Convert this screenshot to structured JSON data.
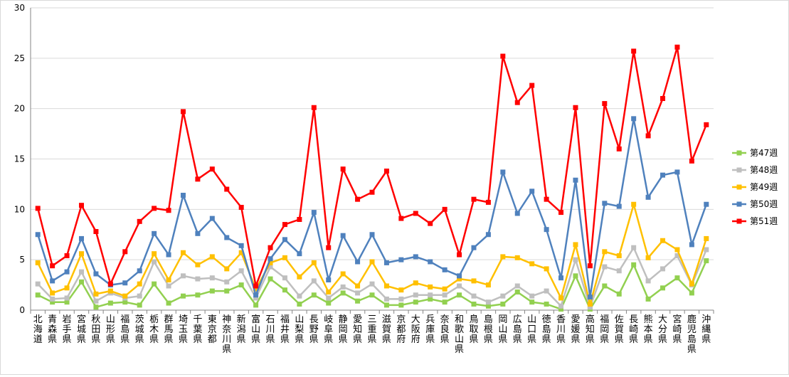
{
  "chart_data": {
    "type": "line",
    "categories": [
      "北海道",
      "青森県",
      "岩手県",
      "宮城県",
      "秋田県",
      "山形県",
      "福島県",
      "茨城県",
      "栃木県",
      "群馬県",
      "埼玉県",
      "千葉県",
      "東京都",
      "神奈川県",
      "新潟県",
      "富山県",
      "石川県",
      "福井県",
      "山梨県",
      "長野県",
      "岐阜県",
      "静岡県",
      "愛知県",
      "三重県",
      "滋賀県",
      "京都府",
      "大阪府",
      "兵庫県",
      "奈良県",
      "和歌山県",
      "鳥取県",
      "島根県",
      "岡山県",
      "広島県",
      "山口県",
      "徳島県",
      "香川県",
      "愛媛県",
      "高知県",
      "福岡県",
      "佐賀県",
      "長崎県",
      "熊本県",
      "大分県",
      "宮崎県",
      "鹿児島県",
      "沖縄県"
    ],
    "ylim": [
      0,
      30
    ],
    "yticks": [
      0,
      5,
      10,
      15,
      20,
      25,
      30
    ],
    "ytick_labels": [
      "0",
      "5",
      "10",
      "15",
      "20",
      "25",
      "30"
    ],
    "grid": true,
    "legend_position": "right",
    "series": [
      {
        "name": "第47週",
        "color": "#92d050",
        "marker": "square",
        "values": [
          1.5,
          0.8,
          0.8,
          2.8,
          0.3,
          0.7,
          0.8,
          0.5,
          2.6,
          0.7,
          1.4,
          1.5,
          1.9,
          1.9,
          2.5,
          0.5,
          3.1,
          2.0,
          0.6,
          1.5,
          0.7,
          1.7,
          0.9,
          1.5,
          0.5,
          0.5,
          0.8,
          1.1,
          0.8,
          1.5,
          0.6,
          0.4,
          0.6,
          1.8,
          0.8,
          0.6,
          0.1,
          3.4,
          0.1,
          2.4,
          1.6,
          4.5,
          1.1,
          2.2,
          3.2,
          1.7,
          4.9
        ]
      },
      {
        "name": "第48週",
        "color": "#bfbfbf",
        "marker": "square",
        "values": [
          2.6,
          1.1,
          1.2,
          3.8,
          0.9,
          1.7,
          1.2,
          1.4,
          4.8,
          2.4,
          3.4,
          3.1,
          3.2,
          2.8,
          3.9,
          1.2,
          4.3,
          3.2,
          1.4,
          2.9,
          1.2,
          2.3,
          1.7,
          2.6,
          1.1,
          1.1,
          1.5,
          1.5,
          1.5,
          2.4,
          1.4,
          0.8,
          1.4,
          2.4,
          1.4,
          1.9,
          0.4,
          5.0,
          0.3,
          4.3,
          3.9,
          6.2,
          2.9,
          4.1,
          5.4,
          2.5,
          6.0
        ]
      },
      {
        "name": "第49週",
        "color": "#ffc000",
        "marker": "square",
        "values": [
          4.7,
          1.7,
          2.2,
          5.6,
          1.6,
          1.9,
          1.4,
          2.6,
          5.6,
          3.0,
          5.7,
          4.5,
          5.3,
          4.1,
          5.7,
          2.1,
          4.7,
          5.2,
          3.3,
          4.7,
          1.8,
          3.6,
          2.4,
          4.8,
          2.4,
          2.0,
          2.7,
          2.3,
          2.1,
          3.1,
          2.9,
          2.5,
          5.3,
          5.2,
          4.6,
          4.1,
          1.2,
          6.5,
          0.6,
          5.8,
          5.4,
          10.5,
          5.2,
          6.9,
          6.0,
          2.6,
          7.1
        ]
      },
      {
        "name": "第50週",
        "color": "#4f81bd",
        "marker": "square",
        "values": [
          7.5,
          2.9,
          3.8,
          7.1,
          3.6,
          2.5,
          2.7,
          3.9,
          7.6,
          5.5,
          11.4,
          7.6,
          9.1,
          7.2,
          6.4,
          1.5,
          5.1,
          7.0,
          5.6,
          9.7,
          3.0,
          7.4,
          4.8,
          7.5,
          4.7,
          5.0,
          5.3,
          4.8,
          4.0,
          3.4,
          6.2,
          7.5,
          13.7,
          9.6,
          11.8,
          8.0,
          3.2,
          12.9,
          1.3,
          10.6,
          10.3,
          19.0,
          11.2,
          13.4,
          13.7,
          6.5,
          10.5
        ]
      },
      {
        "name": "第51週",
        "color": "#ff0000",
        "marker": "square",
        "values": [
          10.1,
          4.4,
          5.4,
          10.4,
          7.8,
          2.6,
          5.8,
          8.8,
          10.1,
          9.9,
          19.7,
          13.0,
          14.0,
          12.0,
          10.2,
          2.4,
          6.2,
          8.5,
          9.0,
          20.1,
          6.2,
          14.0,
          11.0,
          11.7,
          13.8,
          9.1,
          9.6,
          8.6,
          10.0,
          5.5,
          11.0,
          10.7,
          25.2,
          20.6,
          22.3,
          11.0,
          9.7,
          20.1,
          4.4,
          20.5,
          16.0,
          25.7,
          17.3,
          21.0,
          26.1,
          14.8,
          18.4
        ]
      }
    ]
  }
}
